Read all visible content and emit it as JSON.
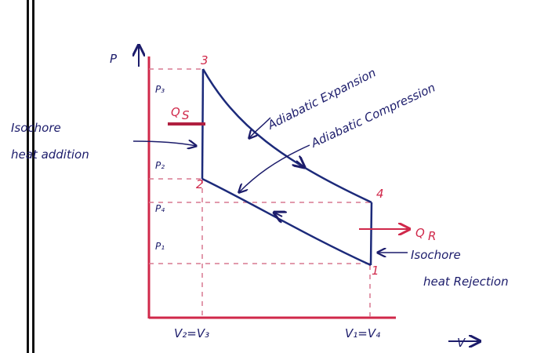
{
  "axes": {
    "p_label": "P",
    "v_label": "V"
  },
  "points": {
    "p1": "1",
    "p2": "2",
    "p3": "3",
    "p4": "4"
  },
  "pressure_labels": {
    "p3": "P₃",
    "p2": "P₂",
    "p4": "P₄",
    "p1": "P₁"
  },
  "volume_labels": {
    "left": "V₂=V₃",
    "right": "V₁=V₄"
  },
  "heat": {
    "supplied": {
      "symbol": "Q",
      "sub": "S"
    },
    "rejected": {
      "symbol": "Q",
      "sub": "R"
    }
  },
  "processes": {
    "expansion": "Adiabatic Expansion",
    "compression": "Adiabatic Compression",
    "addition": {
      "line1": "Isochore",
      "line2": "heat addition"
    },
    "rejection": {
      "line1": "Isochore",
      "line2": "heat Rejection"
    }
  }
}
